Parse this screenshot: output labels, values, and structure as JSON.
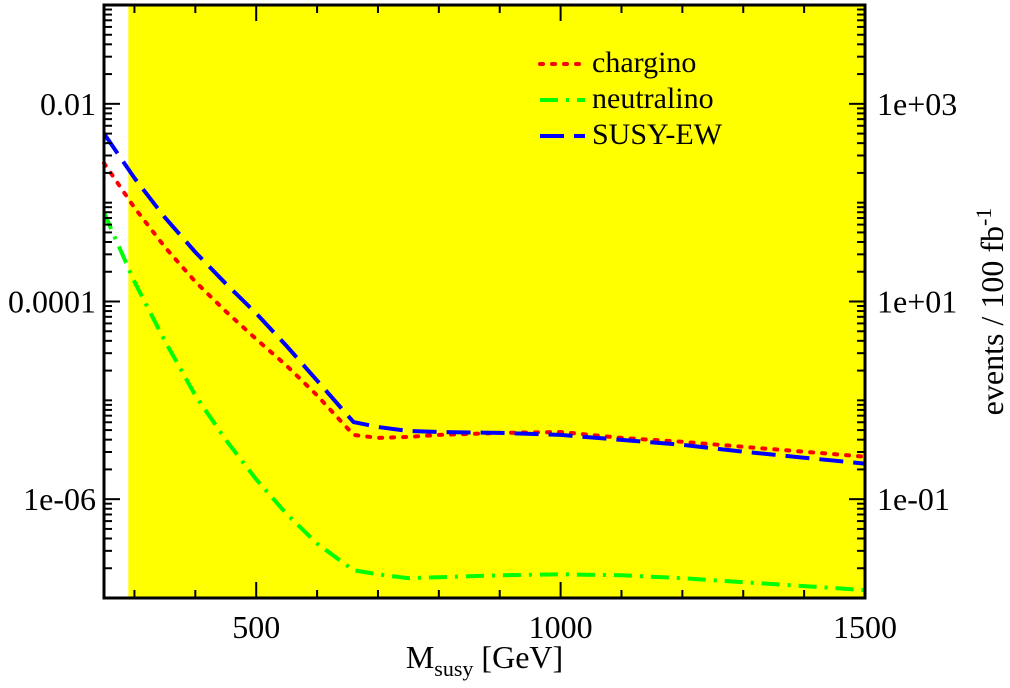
{
  "chart_data": {
    "type": "line",
    "title": "",
    "xlabel": {
      "main": "M",
      "sub": "susy",
      "unit": " [GeV]"
    },
    "ylabel_right": {
      "main": "events / 100 fb",
      "sup": "-1"
    },
    "xlim": [
      250,
      1500
    ],
    "ylim_log10": [
      -7,
      -1
    ],
    "ylim_right_log10": [
      -2,
      4
    ],
    "x_ticks": [
      500,
      1000,
      1500
    ],
    "x_tick_labels": [
      "500",
      "1000",
      "1500"
    ],
    "y_ticks_log10": [
      -2,
      -4,
      -6
    ],
    "y_tick_labels": [
      "0.01",
      "0.0001",
      "1e-06"
    ],
    "y_right_ticks_log10": [
      3,
      1,
      -1
    ],
    "y_right_tick_labels": [
      "1e+03",
      "1e+01",
      "1e-01"
    ],
    "shaded_region": {
      "x_from": 290,
      "x_to": 1500,
      "color": "#ffff00"
    },
    "legend_position": "top-right",
    "series": [
      {
        "name": "chargino",
        "color": "#ff0000",
        "style": "dotted",
        "x": [
          250,
          300,
          350,
          400,
          450,
          500,
          550,
          600,
          660,
          700,
          750,
          800,
          900,
          1000,
          1100,
          1200,
          1300,
          1400,
          1500
        ],
        "log10_y": [
          -2.6,
          -3.05,
          -3.45,
          -3.8,
          -4.1,
          -4.38,
          -4.65,
          -4.95,
          -5.35,
          -5.38,
          -5.37,
          -5.35,
          -5.33,
          -5.32,
          -5.38,
          -5.42,
          -5.47,
          -5.52,
          -5.57
        ]
      },
      {
        "name": "neutralino",
        "color": "#00ff00",
        "style": "dashdot",
        "x": [
          250,
          300,
          350,
          400,
          450,
          500,
          550,
          600,
          660,
          700,
          750,
          800,
          900,
          1000,
          1100,
          1200,
          1300,
          1400,
          1500
        ],
        "log10_y": [
          -3.1,
          -3.8,
          -4.4,
          -4.95,
          -5.4,
          -5.8,
          -6.15,
          -6.45,
          -6.72,
          -6.76,
          -6.8,
          -6.79,
          -6.77,
          -6.76,
          -6.77,
          -6.8,
          -6.84,
          -6.88,
          -6.92
        ]
      },
      {
        "name": "SUSY-EW",
        "color": "#0000ff",
        "style": "dashed",
        "x": [
          250,
          300,
          350,
          400,
          450,
          500,
          550,
          600,
          660,
          700,
          750,
          800,
          900,
          1000,
          1100,
          1200,
          1300,
          1400,
          1500
        ],
        "log10_y": [
          -2.3,
          -2.75,
          -3.15,
          -3.5,
          -3.82,
          -4.12,
          -4.45,
          -4.8,
          -5.22,
          -5.27,
          -5.31,
          -5.32,
          -5.33,
          -5.35,
          -5.4,
          -5.45,
          -5.52,
          -5.58,
          -5.64
        ]
      }
    ]
  }
}
